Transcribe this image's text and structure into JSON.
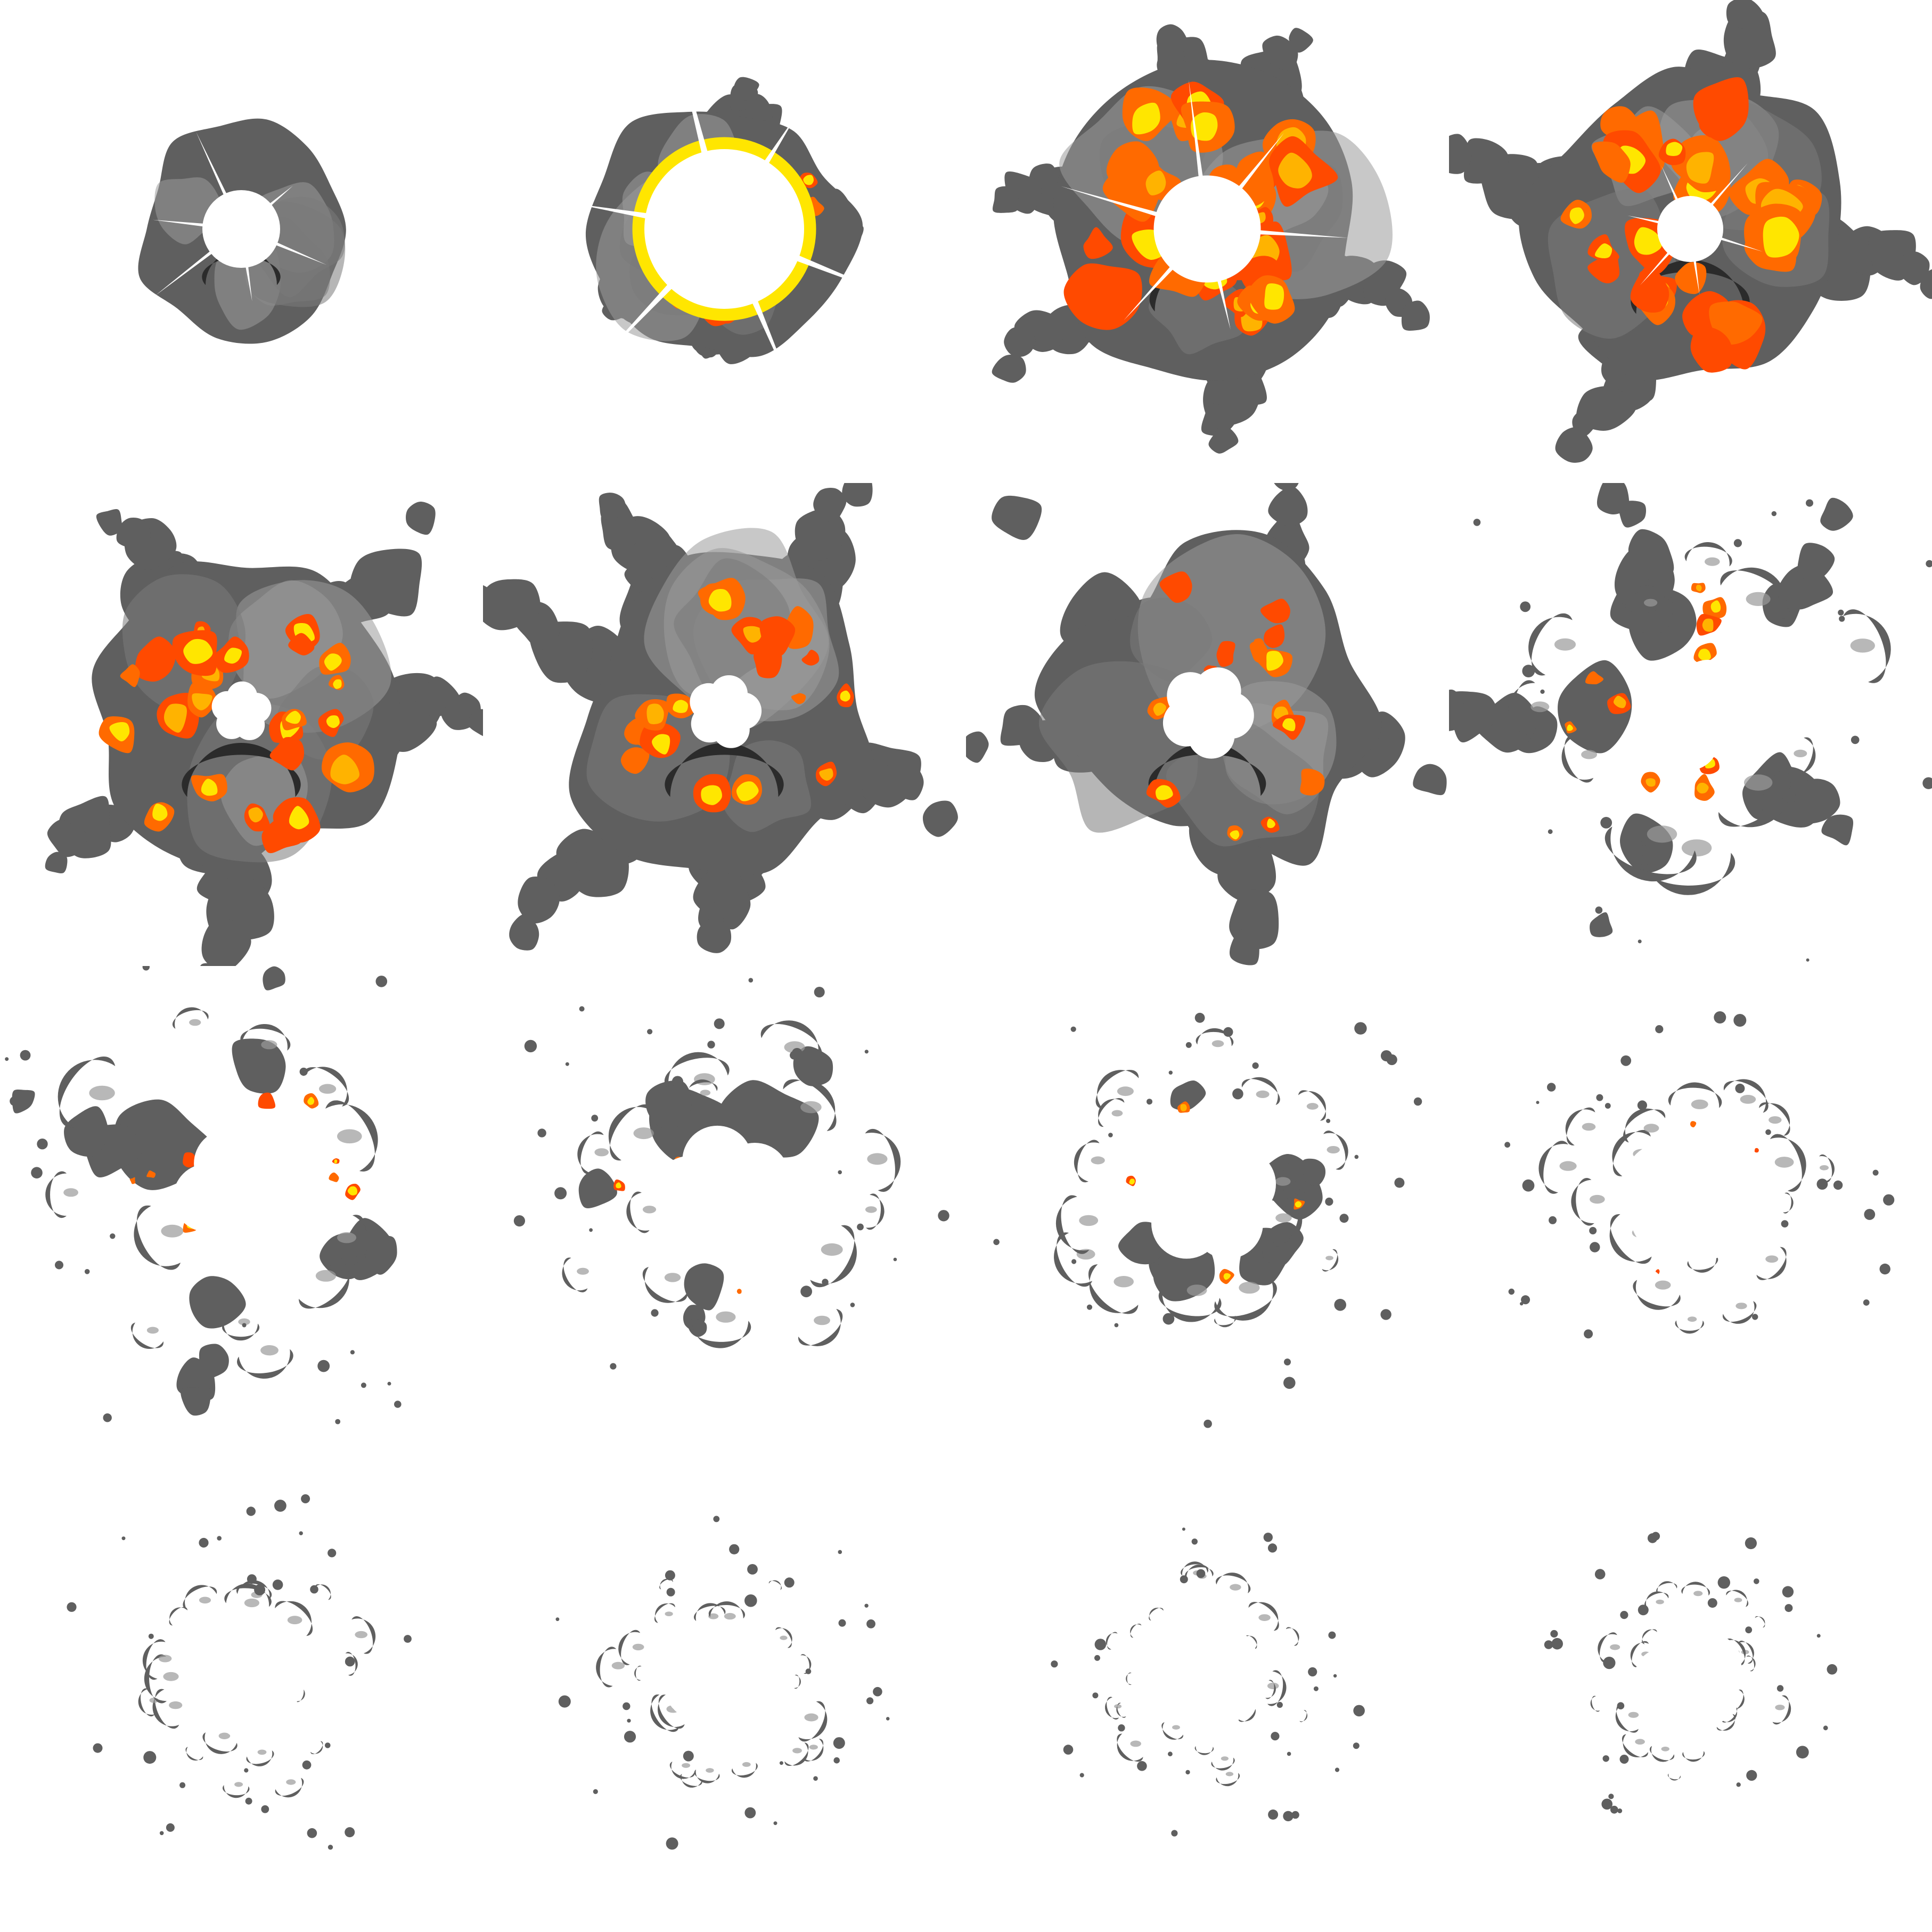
{
  "sprite_sheet": {
    "grid": {
      "columns": 4,
      "rows": 4
    },
    "background": "#ffffff",
    "colors": {
      "smoke_dark": "#5f5f5f",
      "smoke_mid": "#7a7a7a",
      "smoke_light": "#9a9a9a",
      "shadow": "#2b2b2b",
      "flash": "#ffffff",
      "fire_orange": "#ff6a00",
      "fire_deep": "#ff4a00",
      "fire_yellow": "#ffe600",
      "fire_amber": "#ffb300"
    },
    "frames": [
      {
        "index": 1,
        "smoke": 0.42,
        "fire": 0.0,
        "flash": 0.3,
        "fragmentation": 0.0,
        "arms": 0.0,
        "hole": 0.0
      },
      {
        "index": 2,
        "smoke": 0.7,
        "fire": 0.55,
        "flash": 1.0,
        "fragmentation": 0.0,
        "arms": 0.35,
        "hole": 0.0
      },
      {
        "index": 3,
        "smoke": 0.95,
        "fire": 1.0,
        "flash": 0.55,
        "fragmentation": 0.0,
        "arms": 0.85,
        "hole": 0.1
      },
      {
        "index": 4,
        "smoke": 1.0,
        "fire": 1.0,
        "flash": 0.2,
        "fragmentation": 0.0,
        "arms": 1.0,
        "hole": 0.14
      },
      {
        "index": 5,
        "smoke": 1.0,
        "fire": 0.75,
        "flash": 0.0,
        "fragmentation": 0.05,
        "arms": 1.0,
        "hole": 0.18
      },
      {
        "index": 6,
        "smoke": 1.0,
        "fire": 0.55,
        "flash": 0.0,
        "fragmentation": 0.12,
        "arms": 1.0,
        "hole": 0.22
      },
      {
        "index": 7,
        "smoke": 0.98,
        "fire": 0.4,
        "flash": 0.0,
        "fragmentation": 0.22,
        "arms": 1.0,
        "hole": 0.28
      },
      {
        "index": 8,
        "smoke": 0.92,
        "fire": 0.22,
        "flash": 0.0,
        "fragmentation": 0.45,
        "arms": 0.9,
        "hole": 0.36
      },
      {
        "index": 9,
        "smoke": 0.85,
        "fire": 0.14,
        "flash": 0.0,
        "fragmentation": 0.68,
        "arms": 0.8,
        "hole": 0.44
      },
      {
        "index": 10,
        "smoke": 0.7,
        "fire": 0.09,
        "flash": 0.0,
        "fragmentation": 0.8,
        "arms": 0.5,
        "hole": 0.5
      },
      {
        "index": 11,
        "smoke": 0.58,
        "fire": 0.05,
        "flash": 0.0,
        "fragmentation": 0.88,
        "arms": 0.2,
        "hole": 0.55
      },
      {
        "index": 12,
        "smoke": 0.48,
        "fire": 0.02,
        "flash": 0.0,
        "fragmentation": 0.93,
        "arms": 0.0,
        "hole": 0.58
      },
      {
        "index": 13,
        "smoke": 0.36,
        "fire": 0.0,
        "flash": 0.0,
        "fragmentation": 0.96,
        "arms": 0.0,
        "hole": 0.6
      },
      {
        "index": 14,
        "smoke": 0.28,
        "fire": 0.0,
        "flash": 0.0,
        "fragmentation": 0.97,
        "arms": 0.0,
        "hole": 0.62
      },
      {
        "index": 15,
        "smoke": 0.2,
        "fire": 0.0,
        "flash": 0.0,
        "fragmentation": 0.98,
        "arms": 0.0,
        "hole": 0.64
      },
      {
        "index": 16,
        "smoke": 0.14,
        "fire": 0.0,
        "flash": 0.0,
        "fragmentation": 1.0,
        "arms": 0.0,
        "hole": 0.66
      }
    ]
  }
}
